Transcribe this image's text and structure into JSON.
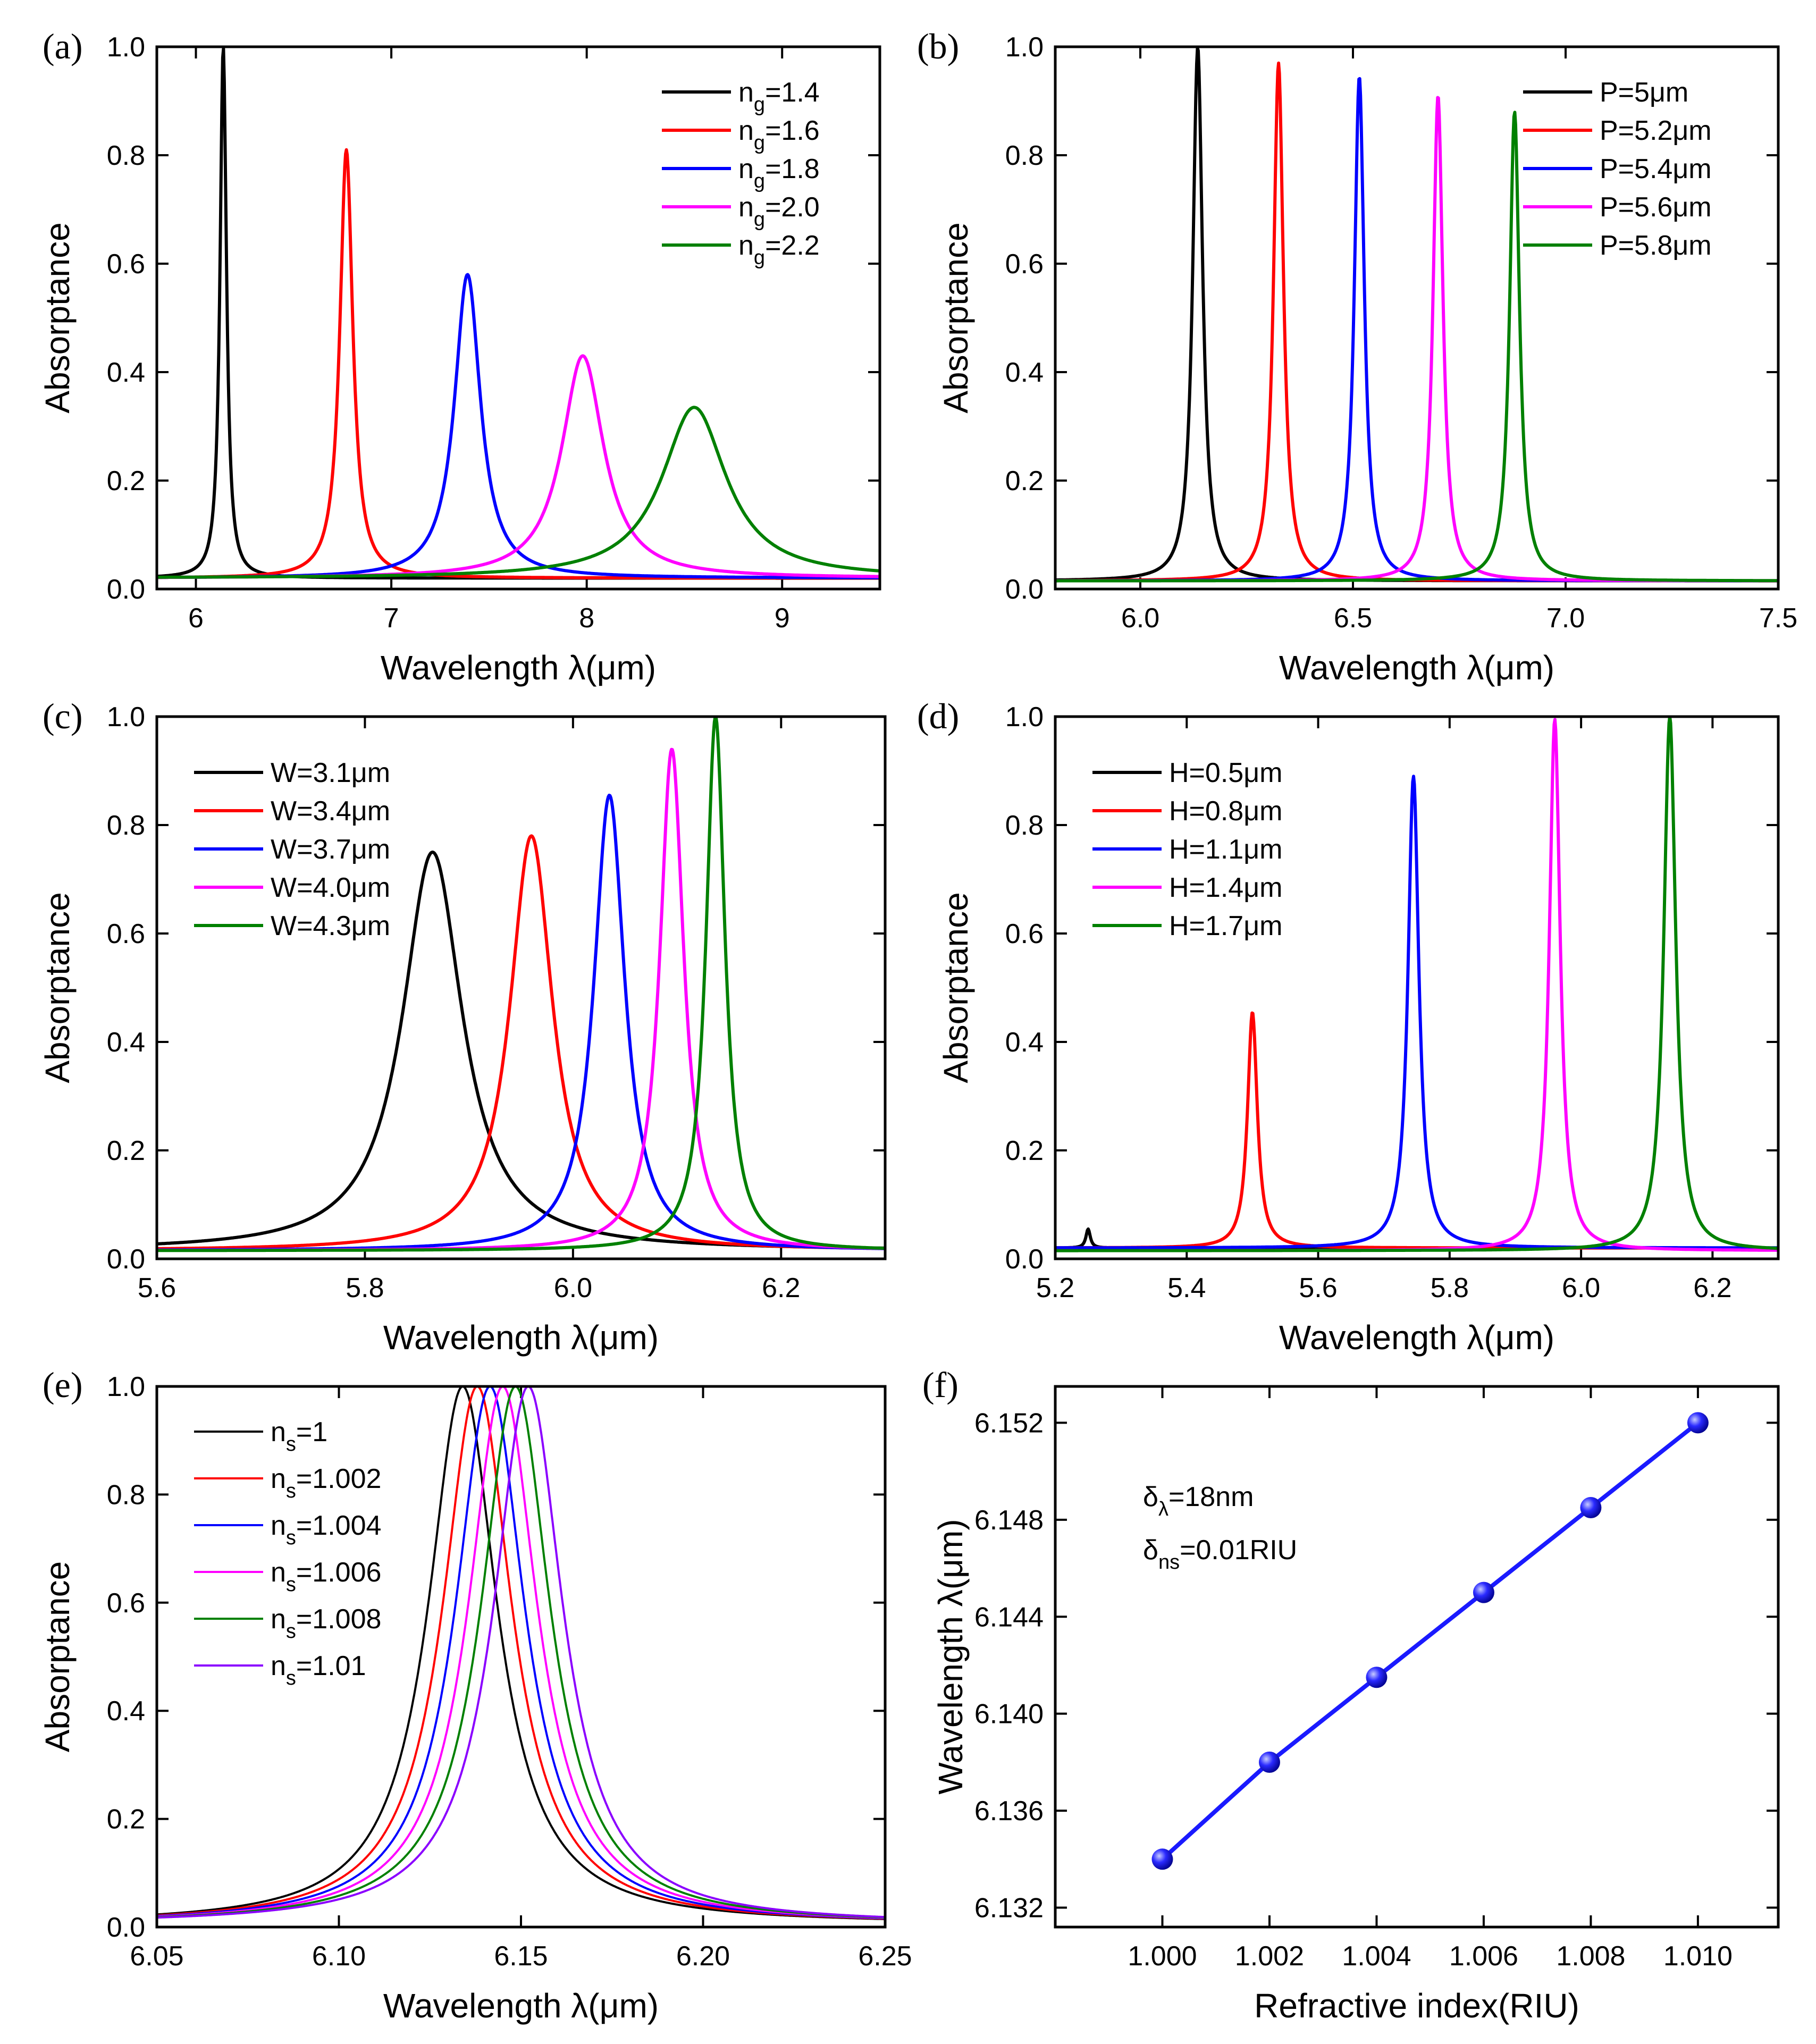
{
  "chart_data": [
    {
      "type": "line",
      "panel_label": "(a)",
      "xlabel": "Wavelength λ(μm)",
      "ylabel": "Absorptance",
      "xlim": [
        5.8,
        9.5
      ],
      "ylim": [
        0,
        1.0
      ],
      "xticks": [
        6,
        7,
        8,
        9
      ],
      "xtick_labels": [
        "6",
        "7",
        "8",
        "9"
      ],
      "yticks": [
        0,
        0.2,
        0.4,
        0.6,
        0.8,
        1.0
      ],
      "ytick_labels": [
        "0.0",
        "0.2",
        "0.4",
        "0.6",
        "0.8",
        "1.0"
      ],
      "legend_position": "top-right",
      "series": [
        {
          "name": "n_g=1.4",
          "label_main": "n",
          "label_sub": "g",
          "label_rest": "=1.4",
          "color": "#000000",
          "peak_x": 6.14,
          "peak_y": 1.0,
          "hwhm": 0.02,
          "baseline": 0.02
        },
        {
          "name": "n_g=1.6",
          "label_main": "n",
          "label_sub": "g",
          "label_rest": "=1.6",
          "color": "#ff0000",
          "peak_x": 6.77,
          "peak_y": 0.81,
          "hwhm": 0.04,
          "baseline": 0.02
        },
        {
          "name": "n_g=1.8",
          "label_main": "n",
          "label_sub": "g",
          "label_rest": "=1.8",
          "color": "#0000ff",
          "peak_x": 7.39,
          "peak_y": 0.58,
          "hwhm": 0.08,
          "baseline": 0.02
        },
        {
          "name": "n_g=2.0",
          "label_main": "n",
          "label_sub": "g",
          "label_rest": "=2.0",
          "color": "#ff00ff",
          "peak_x": 7.98,
          "peak_y": 0.43,
          "hwhm": 0.13,
          "baseline": 0.02
        },
        {
          "name": "n_g=2.2",
          "label_main": "n",
          "label_sub": "g",
          "label_rest": "=2.2",
          "color": "#008000",
          "peak_x": 8.55,
          "peak_y": 0.335,
          "hwhm": 0.2,
          "baseline": 0.02
        }
      ]
    },
    {
      "type": "line",
      "panel_label": "(b)",
      "xlabel": "Wavelength λ(μm)",
      "ylabel": "Absorptance",
      "xlim": [
        5.8,
        7.5
      ],
      "ylim": [
        0,
        1.0
      ],
      "xticks": [
        6.0,
        6.5,
        7.0,
        7.5
      ],
      "xtick_labels": [
        "6.0",
        "6.5",
        "7.0",
        "7.5"
      ],
      "yticks": [
        0,
        0.2,
        0.4,
        0.6,
        0.8,
        1.0
      ],
      "ytick_labels": [
        "0.0",
        "0.2",
        "0.4",
        "0.6",
        "0.8",
        "1.0"
      ],
      "legend_position": "top-right",
      "series": [
        {
          "name": "P=5μm",
          "label_main": "P=5μm",
          "label_sub": "",
          "label_rest": "",
          "color": "#000000",
          "peak_x": 6.135,
          "peak_y": 1.0,
          "hwhm": 0.014,
          "baseline": 0.015
        },
        {
          "name": "P=5.2μm",
          "label_main": "P=5.2μm",
          "label_sub": "",
          "label_rest": "",
          "color": "#ff0000",
          "peak_x": 6.325,
          "peak_y": 0.97,
          "hwhm": 0.014,
          "baseline": 0.015
        },
        {
          "name": "P=5.4μm",
          "label_main": "P=5.4μm",
          "label_sub": "",
          "label_rest": "",
          "color": "#0000ff",
          "peak_x": 6.515,
          "peak_y": 0.945,
          "hwhm": 0.014,
          "baseline": 0.015
        },
        {
          "name": "P=5.6μm",
          "label_main": "P=5.6μm",
          "label_sub": "",
          "label_rest": "",
          "color": "#ff00ff",
          "peak_x": 6.7,
          "peak_y": 0.91,
          "hwhm": 0.014,
          "baseline": 0.015
        },
        {
          "name": "P=5.8μm",
          "label_main": "P=5.8μm",
          "label_sub": "",
          "label_rest": "",
          "color": "#008000",
          "peak_x": 6.88,
          "peak_y": 0.88,
          "hwhm": 0.014,
          "baseline": 0.015
        }
      ]
    },
    {
      "type": "line",
      "panel_label": "(c)",
      "xlabel": "Wavelength λ(μm)",
      "ylabel": "Absorptance",
      "xlim": [
        5.6,
        6.3
      ],
      "ylim": [
        0,
        1.0
      ],
      "xticks": [
        5.6,
        5.8,
        6.0,
        6.2
      ],
      "xtick_labels": [
        "5.6",
        "5.8",
        "6.0",
        "6.2"
      ],
      "yticks": [
        0,
        0.2,
        0.4,
        0.6,
        0.8,
        1.0
      ],
      "ytick_labels": [
        "0.0",
        "0.2",
        "0.4",
        "0.6",
        "0.8",
        "1.0"
      ],
      "legend_position": "top-left",
      "series": [
        {
          "name": "W=3.1μm",
          "label_main": "W=3.1μm",
          "label_sub": "",
          "label_rest": "",
          "color": "#000000",
          "peak_x": 5.865,
          "peak_y": 0.75,
          "hwhm": 0.035,
          "baseline": 0.015
        },
        {
          "name": "W=3.4μm",
          "label_main": "W=3.4μm",
          "label_sub": "",
          "label_rest": "",
          "color": "#ff0000",
          "peak_x": 5.96,
          "peak_y": 0.78,
          "hwhm": 0.025,
          "baseline": 0.015
        },
        {
          "name": "W=3.7μm",
          "label_main": "W=3.7μm",
          "label_sub": "",
          "label_rest": "",
          "color": "#0000ff",
          "peak_x": 6.035,
          "peak_y": 0.855,
          "hwhm": 0.018,
          "baseline": 0.015
        },
        {
          "name": "W=4.0μm",
          "label_main": "W=4.0μm",
          "label_sub": "",
          "label_rest": "",
          "color": "#ff00ff",
          "peak_x": 6.095,
          "peak_y": 0.94,
          "hwhm": 0.014,
          "baseline": 0.015
        },
        {
          "name": "W=4.3μm",
          "label_main": "W=4.3μm",
          "label_sub": "",
          "label_rest": "",
          "color": "#008000",
          "peak_x": 6.137,
          "peak_y": 1.0,
          "hwhm": 0.011,
          "baseline": 0.015
        }
      ]
    },
    {
      "type": "line",
      "panel_label": "(d)",
      "xlabel": "Wavelength λ(μm)",
      "ylabel": "Absorptance",
      "xlim": [
        5.2,
        6.3
      ],
      "ylim": [
        0,
        1.0
      ],
      "xticks": [
        5.2,
        5.4,
        5.6,
        5.8,
        6.0,
        6.2
      ],
      "xtick_labels": [
        "5.2",
        "5.4",
        "5.6",
        "5.8",
        "6.0",
        "6.2"
      ],
      "yticks": [
        0,
        0.2,
        0.4,
        0.6,
        0.8,
        1.0
      ],
      "ytick_labels": [
        "0.0",
        "0.2",
        "0.4",
        "0.6",
        "0.8",
        "1.0"
      ],
      "legend_position": "top-left",
      "series": [
        {
          "name": "H=0.5μm",
          "label_main": "H=0.5μm",
          "label_sub": "",
          "label_rest": "",
          "color": "#000000",
          "peak_x": 5.25,
          "peak_y": 0.055,
          "hwhm": 0.004,
          "baseline": 0.02
        },
        {
          "name": "H=0.8μm",
          "label_main": "H=0.8μm",
          "label_sub": "",
          "label_rest": "",
          "color": "#ff0000",
          "peak_x": 5.5,
          "peak_y": 0.455,
          "hwhm": 0.009,
          "baseline": 0.02
        },
        {
          "name": "H=1.1μm",
          "label_main": "H=1.1μm",
          "label_sub": "",
          "label_rest": "",
          "color": "#0000ff",
          "peak_x": 5.745,
          "peak_y": 0.89,
          "hwhm": 0.01,
          "baseline": 0.02
        },
        {
          "name": "H=1.4μm",
          "label_main": "H=1.4μm",
          "label_sub": "",
          "label_rest": "",
          "color": "#ff00ff",
          "peak_x": 5.96,
          "peak_y": 0.995,
          "hwhm": 0.01,
          "baseline": 0.015
        },
        {
          "name": "H=1.7μm",
          "label_main": "H=1.7μm",
          "label_sub": "",
          "label_rest": "",
          "color": "#008000",
          "peak_x": 6.135,
          "peak_y": 1.0,
          "hwhm": 0.011,
          "baseline": 0.015
        }
      ]
    },
    {
      "type": "line",
      "panel_label": "(e)",
      "xlabel": "Wavelength λ(μm)",
      "ylabel": "Absorptance",
      "xlim": [
        6.05,
        6.25
      ],
      "ylim": [
        0,
        1.0
      ],
      "xticks": [
        6.05,
        6.1,
        6.15,
        6.2,
        6.25
      ],
      "xtick_labels": [
        "6.05",
        "6.10",
        "6.15",
        "6.20",
        "6.25"
      ],
      "yticks": [
        0,
        0.2,
        0.4,
        0.6,
        0.8,
        1.0
      ],
      "ytick_labels": [
        "0.0",
        "0.2",
        "0.4",
        "0.6",
        "0.8",
        "1.0"
      ],
      "legend_position": "top-left",
      "series": [
        {
          "name": "n_s=1",
          "label_main": "n",
          "label_sub": "s",
          "label_rest": "=1",
          "color": "#000000",
          "peak_x": 6.134,
          "peak_y": 1.0,
          "hwhm": 0.0115,
          "baseline": 0.005
        },
        {
          "name": "n_s=1.002",
          "label_main": "n",
          "label_sub": "s",
          "label_rest": "=1.002",
          "color": "#ff0000",
          "peak_x": 6.138,
          "peak_y": 1.0,
          "hwhm": 0.0115,
          "baseline": 0.005
        },
        {
          "name": "n_s=1.004",
          "label_main": "n",
          "label_sub": "s",
          "label_rest": "=1.004",
          "color": "#0000ff",
          "peak_x": 6.1415,
          "peak_y": 1.0,
          "hwhm": 0.0115,
          "baseline": 0.005
        },
        {
          "name": "n_s=1.006",
          "label_main": "n",
          "label_sub": "s",
          "label_rest": "=1.006",
          "color": "#ff00ff",
          "peak_x": 6.145,
          "peak_y": 1.0,
          "hwhm": 0.0115,
          "baseline": 0.005
        },
        {
          "name": "n_s=1.008",
          "label_main": "n",
          "label_sub": "s",
          "label_rest": "=1.008",
          "color": "#008000",
          "peak_x": 6.1485,
          "peak_y": 1.0,
          "hwhm": 0.0115,
          "baseline": 0.005
        },
        {
          "name": "n_s=1.01",
          "label_main": "n",
          "label_sub": "s",
          "label_rest": "=1.01",
          "color": "#8b00ff",
          "peak_x": 6.152,
          "peak_y": 1.0,
          "hwhm": 0.0115,
          "baseline": 0.005
        }
      ]
    },
    {
      "type": "scatter",
      "panel_label": "(f)",
      "xlabel": "Refractive index(RIU)",
      "ylabel": "Wavelength λ(μm)",
      "xlim": [
        0.998,
        1.0115
      ],
      "ylim": [
        6.1312,
        6.1535
      ],
      "xticks": [
        1.0,
        1.002,
        1.004,
        1.006,
        1.008,
        1.01
      ],
      "xtick_labels": [
        "1.000",
        "1.002",
        "1.004",
        "1.006",
        "1.008",
        "1.010"
      ],
      "yticks": [
        6.132,
        6.136,
        6.14,
        6.144,
        6.148,
        6.152
      ],
      "ytick_labels": [
        "6.132",
        "6.136",
        "6.140",
        "6.144",
        "6.148",
        "6.152"
      ],
      "color": "#1a1aff",
      "x": [
        1.0,
        1.002,
        1.004,
        1.006,
        1.008,
        1.01
      ],
      "y": [
        6.134,
        6.138,
        6.1415,
        6.145,
        6.1485,
        6.152
      ],
      "annotations": [
        {
          "main": "δ",
          "sub": "λ",
          "rest": "=18nm"
        },
        {
          "main": "δ",
          "sub": "ns",
          "rest": "=0.01RIU"
        }
      ]
    }
  ]
}
